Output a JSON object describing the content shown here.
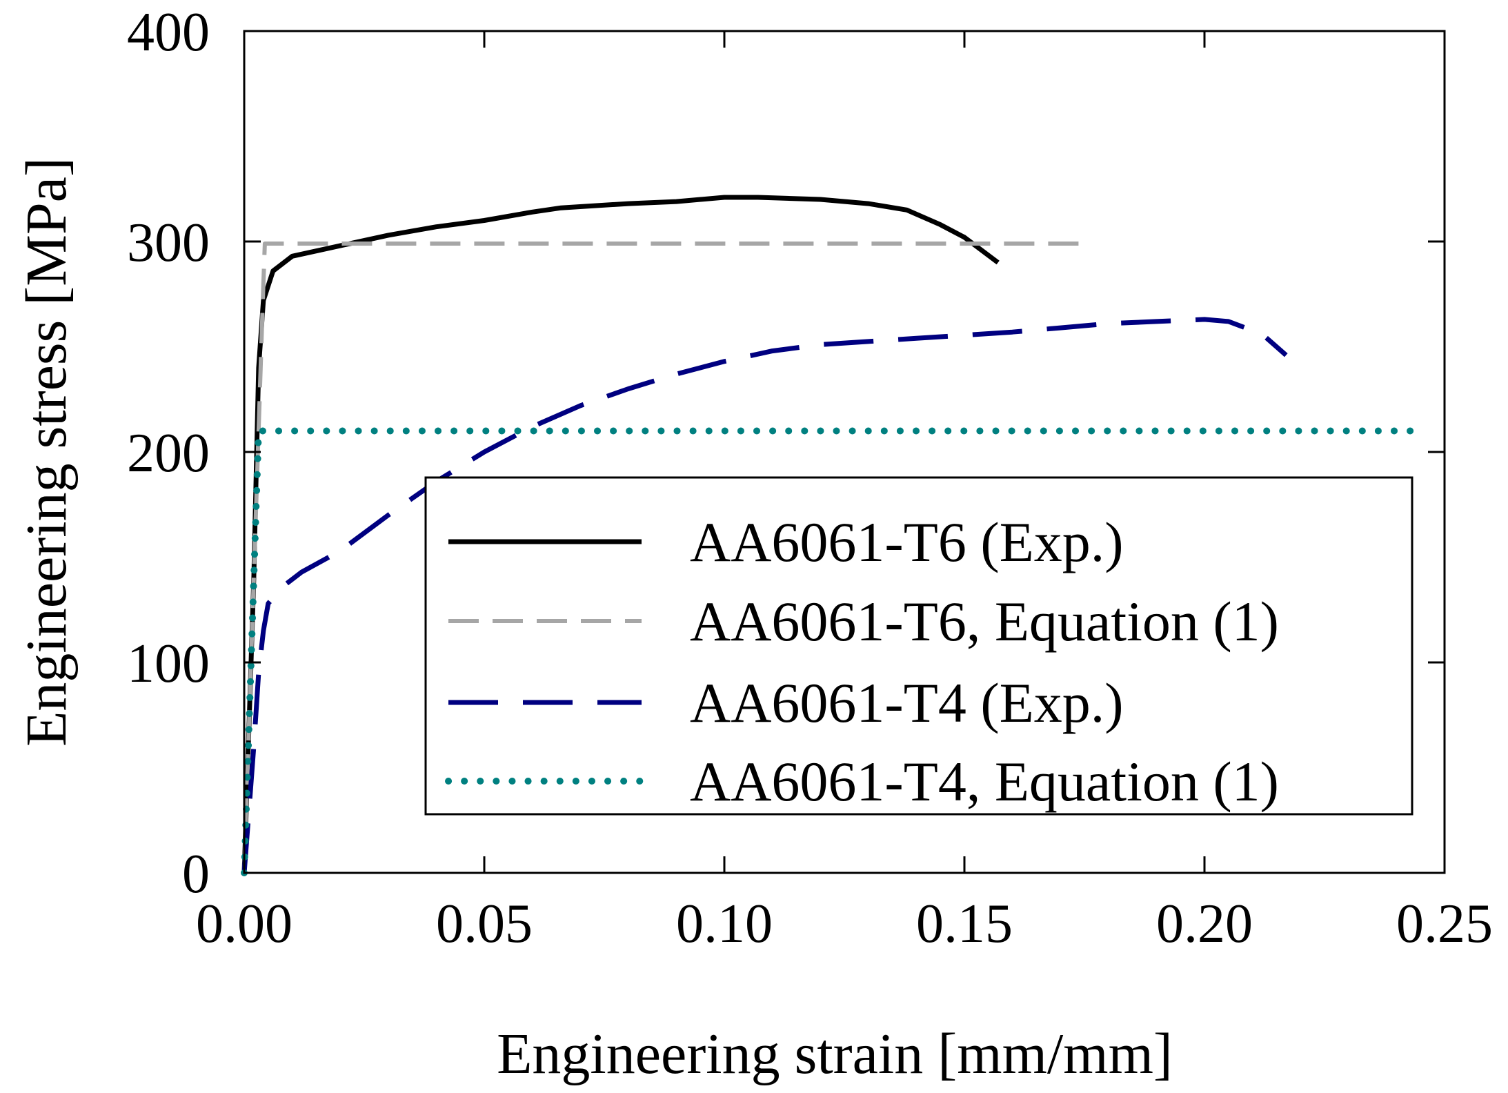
{
  "chart_data": {
    "type": "line",
    "xlabel": "Engineering strain [mm/mm]",
    "ylabel": "Engineering stress [MPa]",
    "xlim": [
      0,
      0.25
    ],
    "ylim": [
      0,
      400
    ],
    "x_ticks": [
      0,
      0.05,
      0.1,
      0.15,
      0.2,
      0.25
    ],
    "x_tick_labels": [
      "0.00",
      "0.05",
      "0.10",
      "0.15",
      "0.20",
      "0.25"
    ],
    "y_ticks": [
      0,
      100,
      200,
      300,
      400
    ],
    "y_tick_labels": [
      "0",
      "100",
      "200",
      "300",
      "400"
    ],
    "grid": false,
    "legend_position": "lower-right",
    "series": [
      {
        "name": "AA6061-T6 (Exp.)",
        "color": "#000000",
        "style": "solid",
        "points": [
          [
            0,
            0
          ],
          [
            0.002,
            140
          ],
          [
            0.003,
            240
          ],
          [
            0.004,
            272
          ],
          [
            0.006,
            286
          ],
          [
            0.01,
            293
          ],
          [
            0.02,
            298
          ],
          [
            0.03,
            303
          ],
          [
            0.04,
            307
          ],
          [
            0.05,
            310
          ],
          [
            0.06,
            314
          ],
          [
            0.066,
            316
          ],
          [
            0.08,
            318
          ],
          [
            0.09,
            319
          ],
          [
            0.1,
            321
          ],
          [
            0.107,
            321
          ],
          [
            0.12,
            320
          ],
          [
            0.13,
            318
          ],
          [
            0.138,
            315
          ],
          [
            0.145,
            308
          ],
          [
            0.15,
            302
          ],
          [
            0.157,
            290
          ]
        ]
      },
      {
        "name": "AA6061-T6, Equation (1)",
        "color": "#a6a6a6",
        "style": "dashed",
        "points": [
          [
            0,
            0
          ],
          [
            0.004,
            280
          ],
          [
            0.0043,
            299
          ],
          [
            0.176,
            299
          ]
        ]
      },
      {
        "name": "AA6061-T4 (Exp.)",
        "color": "#000080",
        "style": "longdash",
        "points": [
          [
            0,
            0
          ],
          [
            0.001,
            30
          ],
          [
            0.002,
            60
          ],
          [
            0.003,
            95
          ],
          [
            0.004,
            115
          ],
          [
            0.005,
            128
          ],
          [
            0.008,
            136
          ],
          [
            0.012,
            143
          ],
          [
            0.02,
            153
          ],
          [
            0.03,
            170
          ],
          [
            0.04,
            186
          ],
          [
            0.05,
            200
          ],
          [
            0.06,
            212
          ],
          [
            0.07,
            222
          ],
          [
            0.08,
            230
          ],
          [
            0.09,
            237
          ],
          [
            0.1,
            243
          ],
          [
            0.11,
            248
          ],
          [
            0.12,
            251
          ],
          [
            0.14,
            254
          ],
          [
            0.16,
            257
          ],
          [
            0.17,
            259
          ],
          [
            0.18,
            261
          ],
          [
            0.19,
            262
          ],
          [
            0.2,
            263
          ],
          [
            0.205,
            262
          ],
          [
            0.212,
            256
          ],
          [
            0.217,
            246
          ]
        ]
      },
      {
        "name": "AA6061-T4, Equation (1)",
        "color": "#008080",
        "style": "dotted",
        "points": [
          [
            0,
            0
          ],
          [
            0.003,
            210
          ],
          [
            0.243,
            210
          ]
        ]
      }
    ]
  }
}
